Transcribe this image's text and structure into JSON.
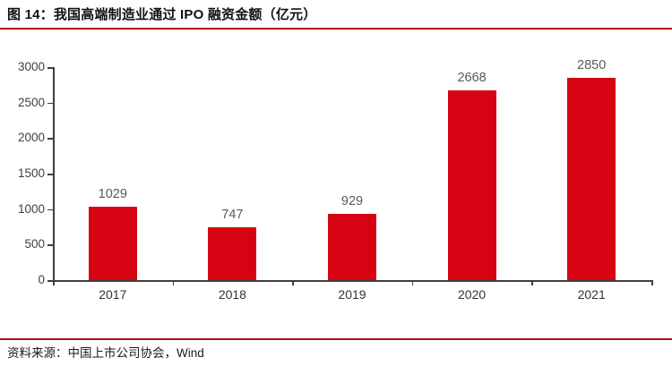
{
  "header": {
    "title": "图 14：我国高端制造业通过 IPO 融资金额（亿元）"
  },
  "footer": {
    "source": "资料来源：中国上市公司协会，Wind"
  },
  "colors": {
    "bar": "#d60413",
    "rule": "#ad1115",
    "axis": "#3f3f3f",
    "tick_label": "#404040",
    "value_label": "#595959"
  },
  "chart_data": {
    "type": "bar",
    "title": "图 14：我国高端制造业通过 IPO 融资金额（亿元）",
    "categories": [
      "2017",
      "2018",
      "2019",
      "2020",
      "2021"
    ],
    "values": [
      1029,
      747,
      929,
      2668,
      2850
    ],
    "xlabel": "",
    "ylabel": "",
    "ylim": [
      0,
      3000
    ],
    "yticks": [
      0,
      500,
      1000,
      1500,
      2000,
      2500,
      3000
    ],
    "grid": false,
    "legend_position": "none",
    "data_labels": true
  }
}
